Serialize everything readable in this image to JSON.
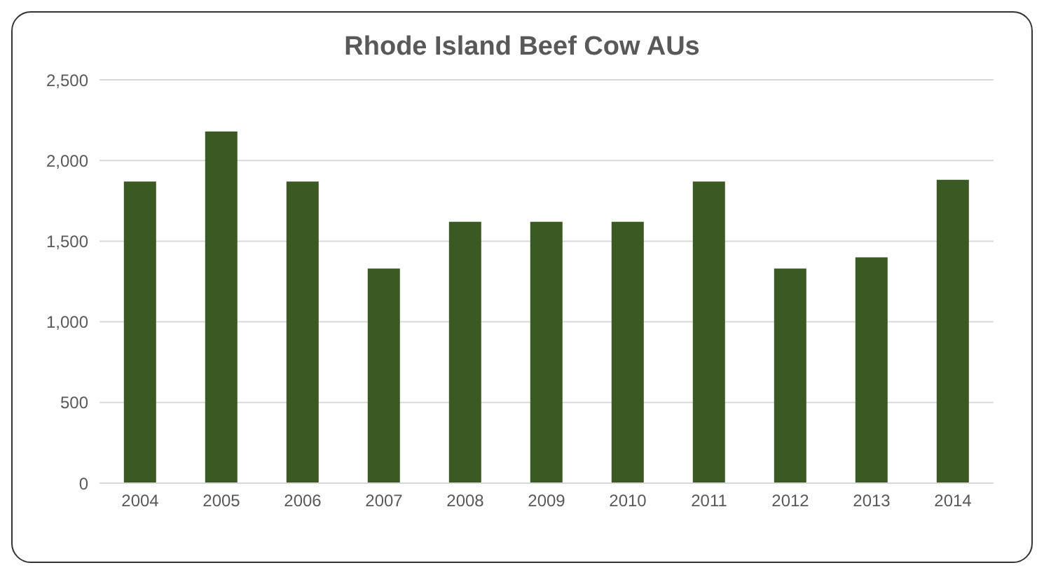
{
  "chart_data": {
    "type": "bar",
    "title": "Rhode Island Beef Cow AUs",
    "categories": [
      "2004",
      "2005",
      "2006",
      "2007",
      "2008",
      "2009",
      "2010",
      "2011",
      "2012",
      "2013",
      "2014"
    ],
    "values": [
      1870,
      2180,
      1870,
      1330,
      1620,
      1620,
      1620,
      1870,
      1330,
      1400,
      1880
    ],
    "color": "#3b5a23",
    "ylim": [
      0,
      2500
    ],
    "yticks": [
      0,
      500,
      {
        "value": 1000,
        "label": "1,000"
      },
      {
        "value": 1500,
        "label": "1,500"
      },
      {
        "value": 2000,
        "label": "2,000"
      },
      {
        "value": 2500,
        "label": "2,500"
      }
    ],
    "grid": "y"
  }
}
